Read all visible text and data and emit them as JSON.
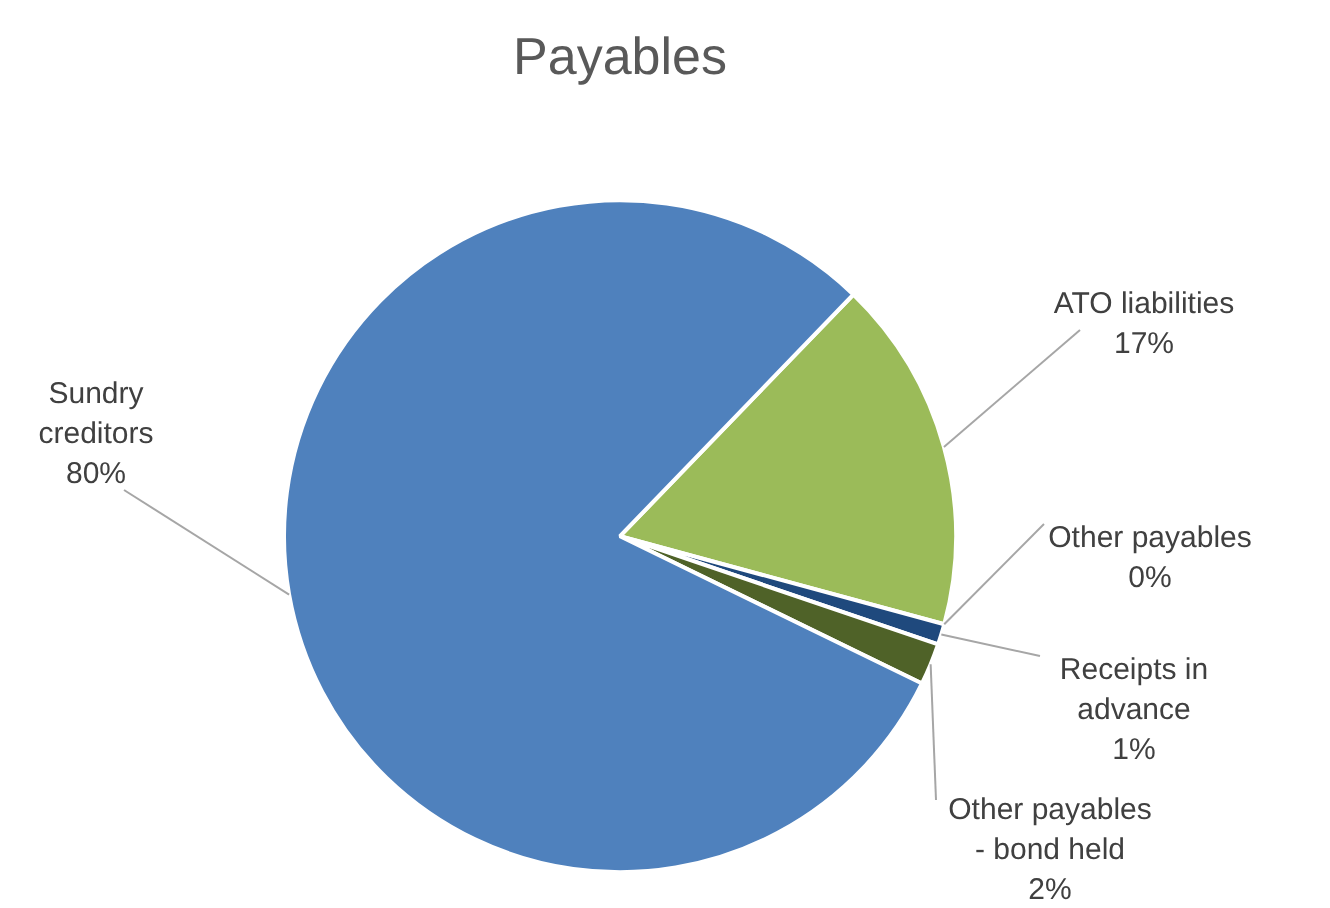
{
  "chart_data": {
    "type": "pie",
    "title": "Payables",
    "categories": [
      "ATO liabilities",
      "Other payables",
      "Receipts in advance",
      "Other payables - bond held",
      "Sundry creditors"
    ],
    "values": [
      17,
      0,
      1,
      2,
      80
    ],
    "colors": [
      "#9bbb59",
      "#8064a2",
      "#1f497d",
      "#4f6228",
      "#4f81bd"
    ],
    "value_labels": [
      "17%",
      "0%",
      "1%",
      "2%",
      "80%"
    ],
    "legend": false
  }
}
